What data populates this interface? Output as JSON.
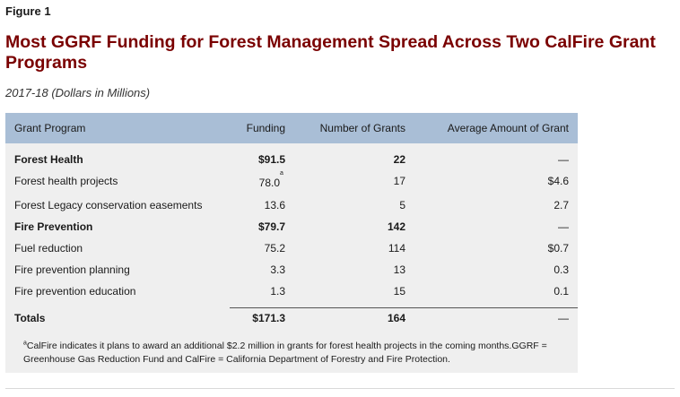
{
  "figure_label": "Figure 1",
  "title": "Most GGRF Funding for Forest Management Spread Across Two CalFire Grant Programs",
  "subtitle": "2017-18 (Dollars in Millions)",
  "table": {
    "headers": [
      "Grant Program",
      "Funding",
      "Number of Grants",
      "Average Amount of Grant"
    ],
    "rows": [
      {
        "program": "Forest Health",
        "funding": "$91.5",
        "grants": "22",
        "average": "—",
        "bold": true
      },
      {
        "program": "Forest health projects",
        "funding": "78.0",
        "funding_note": "a",
        "grants": "17",
        "average": "$4.6",
        "bold": false
      },
      {
        "program": "Forest Legacy conservation easements",
        "funding": "13.6",
        "grants": "5",
        "average": "2.7",
        "bold": false
      },
      {
        "program": "Fire Prevention",
        "funding": "$79.7",
        "grants": "142",
        "average": "—",
        "bold": true
      },
      {
        "program": "Fuel reduction",
        "funding": "75.2",
        "grants": "114",
        "average": "$0.7",
        "bold": false
      },
      {
        "program": "Fire prevention planning",
        "funding": "3.3",
        "grants": "13",
        "average": "0.3",
        "bold": false
      },
      {
        "program": "Fire prevention education",
        "funding": "1.3",
        "grants": "15",
        "average": "0.1",
        "bold": false
      }
    ],
    "totals": {
      "program": "Totals",
      "funding": "$171.3",
      "grants": "164",
      "average": "—"
    }
  },
  "footnote": {
    "marker": "a",
    "text": "CalFire indicates it plans to award an additional $2.2 million in grants for forest health projects in the coming months.GGRF = Greenhouse Gas Reduction Fund and CalFire = California Department of Forestry and Fire Protection."
  }
}
